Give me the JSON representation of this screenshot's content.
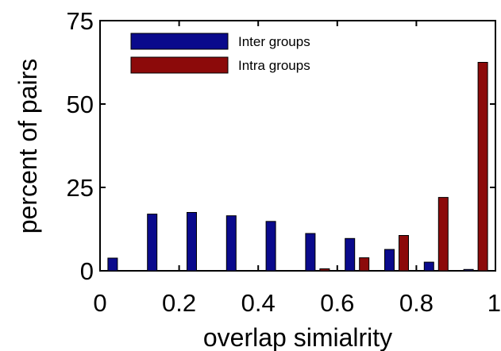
{
  "chart_data": {
    "type": "bar",
    "xlabel": "overlap simialrity",
    "ylabel": "percent of pairs",
    "xlim": [
      0,
      1
    ],
    "ylim": [
      0,
      75
    ],
    "x_ticks": [
      "0",
      "0.2",
      "0.4",
      "0.6",
      "0.8",
      "1"
    ],
    "x_tick_values": [
      0,
      0.2,
      0.4,
      0.6,
      0.8,
      1
    ],
    "y_ticks": [
      "0",
      "25",
      "50",
      "75"
    ],
    "y_tick_values": [
      0,
      25,
      50,
      75
    ],
    "bin_centers": [
      0.05,
      0.15,
      0.25,
      0.35,
      0.45,
      0.55,
      0.65,
      0.75,
      0.85,
      0.95
    ],
    "legend_position": "top-left",
    "grid": false,
    "series": [
      {
        "name": "Inter groups",
        "color": "#0a0a8c",
        "values": [
          3.8,
          17.0,
          17.5,
          16.5,
          14.8,
          11.2,
          9.7,
          6.4,
          2.6,
          0.4
        ]
      },
      {
        "name": "Intra groups",
        "color": "#8c0a0a",
        "values": [
          0,
          0,
          0,
          0,
          0,
          0.6,
          3.9,
          10.6,
          22.0,
          62.5
        ]
      }
    ]
  }
}
